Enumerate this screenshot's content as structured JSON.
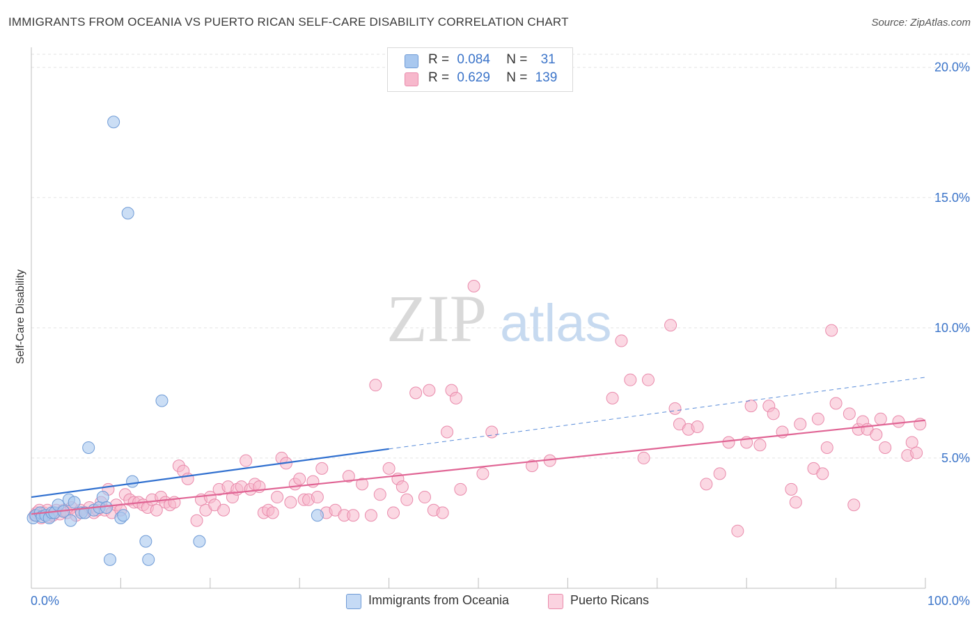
{
  "title": "IMMIGRANTS FROM OCEANIA VS PUERTO RICAN SELF-CARE DISABILITY CORRELATION CHART",
  "source": "Source: ZipAtlas.com",
  "watermark": {
    "zip": "ZIP",
    "atlas": "atlas"
  },
  "legend": {
    "rows": [
      {
        "r_label": "R =",
        "r_value": "0.084",
        "n_label": "N =",
        "n_value": "31",
        "color": "#a9c8ef",
        "stroke": "#6f9bd6"
      },
      {
        "r_label": "R =",
        "r_value": "0.629",
        "n_label": "N =",
        "n_value": "139",
        "color": "#f7b8cc",
        "stroke": "#e98aab"
      }
    ]
  },
  "bottom_legend": [
    {
      "label": "Immigrants from Oceania",
      "color": "#a9c8ef",
      "stroke": "#6f9bd6"
    },
    {
      "label": "Puerto Ricans",
      "color": "#f7b8cc",
      "stroke": "#e98aab"
    }
  ],
  "chart_data": {
    "type": "scatter",
    "title": "IMMIGRANTS FROM OCEANIA VS PUERTO RICAN SELF-CARE DISABILITY CORRELATION CHART",
    "xlabel": "",
    "ylabel": "Self-Care Disability",
    "xlim": [
      0,
      100
    ],
    "ylim": [
      0,
      20.5
    ],
    "x_tick_labels": [
      "0.0%",
      "100.0%"
    ],
    "y_ticks": [
      5,
      10,
      15,
      20
    ],
    "y_tick_labels": [
      "5.0%",
      "10.0%",
      "15.0%",
      "20.0%"
    ],
    "grid": true,
    "legend_position": "top-center",
    "series": [
      {
        "name": "Immigrants from Oceania",
        "color": "#a9c8ef",
        "stroke": "#6f9bd6",
        "trend": {
          "x0": 0,
          "y0": 3.5,
          "x1": 40,
          "y1": 5.35,
          "dash_to_x": 100,
          "dash_to_y": 8.1,
          "color": "#2f6fcf"
        },
        "points": [
          [
            0.2,
            2.7
          ],
          [
            0.5,
            2.8
          ],
          [
            1.0,
            2.9
          ],
          [
            1.2,
            2.75
          ],
          [
            1.6,
            2.8
          ],
          [
            2.0,
            2.7
          ],
          [
            2.3,
            2.9
          ],
          [
            2.6,
            2.9
          ],
          [
            3.0,
            3.2
          ],
          [
            3.6,
            2.95
          ],
          [
            4.2,
            3.4
          ],
          [
            4.8,
            3.3
          ],
          [
            4.4,
            2.6
          ],
          [
            5.6,
            2.9
          ],
          [
            6.0,
            2.9
          ],
          [
            6.4,
            5.4
          ],
          [
            7.0,
            3.0
          ],
          [
            7.6,
            3.1
          ],
          [
            8.0,
            3.5
          ],
          [
            8.4,
            3.1
          ],
          [
            8.8,
            1.1
          ],
          [
            9.2,
            17.9
          ],
          [
            10.0,
            2.7
          ],
          [
            10.3,
            2.8
          ],
          [
            10.8,
            14.4
          ],
          [
            11.3,
            4.1
          ],
          [
            12.8,
            1.8
          ],
          [
            13.1,
            1.1
          ],
          [
            14.6,
            7.2
          ],
          [
            18.8,
            1.8
          ],
          [
            32.0,
            2.8
          ]
        ]
      },
      {
        "name": "Puerto Ricans",
        "color": "#f7b8cc",
        "stroke": "#e98aab",
        "trend": {
          "x0": 0,
          "y0": 2.85,
          "x1": 100,
          "y1": 6.45,
          "color": "#e06494"
        },
        "points": [
          [
            0.4,
            2.8
          ],
          [
            0.6,
            2.9
          ],
          [
            0.9,
            3.0
          ],
          [
            1.1,
            2.7
          ],
          [
            1.4,
            2.9
          ],
          [
            1.8,
            3.0
          ],
          [
            2.0,
            2.75
          ],
          [
            2.4,
            2.8
          ],
          [
            2.8,
            3.0
          ],
          [
            3.2,
            2.85
          ],
          [
            3.6,
            3.0
          ],
          [
            4.0,
            2.9
          ],
          [
            4.5,
            3.1
          ],
          [
            5.0,
            2.8
          ],
          [
            5.5,
            3.0
          ],
          [
            6.0,
            2.9
          ],
          [
            6.5,
            3.1
          ],
          [
            7.0,
            2.9
          ],
          [
            7.4,
            3.0
          ],
          [
            7.8,
            3.3
          ],
          [
            8.2,
            3.0
          ],
          [
            8.6,
            3.8
          ],
          [
            9.0,
            2.9
          ],
          [
            9.5,
            3.2
          ],
          [
            10.0,
            3.0
          ],
          [
            10.5,
            3.6
          ],
          [
            11.0,
            3.4
          ],
          [
            11.5,
            3.3
          ],
          [
            12.0,
            3.3
          ],
          [
            12.5,
            3.2
          ],
          [
            13.0,
            3.1
          ],
          [
            13.5,
            3.4
          ],
          [
            14.0,
            3.0
          ],
          [
            14.5,
            3.5
          ],
          [
            15.0,
            3.3
          ],
          [
            15.5,
            3.2
          ],
          [
            16.0,
            3.3
          ],
          [
            16.5,
            4.7
          ],
          [
            17.0,
            4.5
          ],
          [
            17.5,
            4.2
          ],
          [
            18.5,
            2.6
          ],
          [
            19.0,
            3.4
          ],
          [
            19.5,
            3.0
          ],
          [
            20.0,
            3.5
          ],
          [
            20.5,
            3.2
          ],
          [
            21.0,
            3.8
          ],
          [
            21.5,
            3.0
          ],
          [
            22.0,
            3.9
          ],
          [
            22.5,
            3.5
          ],
          [
            23.0,
            3.8
          ],
          [
            23.5,
            3.9
          ],
          [
            24.0,
            4.9
          ],
          [
            24.5,
            3.8
          ],
          [
            25.0,
            4.0
          ],
          [
            25.5,
            3.9
          ],
          [
            26.0,
            2.9
          ],
          [
            26.5,
            3.0
          ],
          [
            27.0,
            2.9
          ],
          [
            27.5,
            3.5
          ],
          [
            28.0,
            5.0
          ],
          [
            28.5,
            4.8
          ],
          [
            29.0,
            3.3
          ],
          [
            29.5,
            4.0
          ],
          [
            30.0,
            4.2
          ],
          [
            30.5,
            3.4
          ],
          [
            31.0,
            3.4
          ],
          [
            31.5,
            4.1
          ],
          [
            32.0,
            3.5
          ],
          [
            32.5,
            4.6
          ],
          [
            33.0,
            2.9
          ],
          [
            34.0,
            3.0
          ],
          [
            35.0,
            2.8
          ],
          [
            35.5,
            4.3
          ],
          [
            36.0,
            2.8
          ],
          [
            37.0,
            4.0
          ],
          [
            38.0,
            2.8
          ],
          [
            38.5,
            7.8
          ],
          [
            39.0,
            3.6
          ],
          [
            40.0,
            4.6
          ],
          [
            40.5,
            2.9
          ],
          [
            41.0,
            4.2
          ],
          [
            41.5,
            3.9
          ],
          [
            42.0,
            3.4
          ],
          [
            43.0,
            7.5
          ],
          [
            44.0,
            3.5
          ],
          [
            44.5,
            7.6
          ],
          [
            45.0,
            3.0
          ],
          [
            46.0,
            2.9
          ],
          [
            46.5,
            6.0
          ],
          [
            47.0,
            7.6
          ],
          [
            47.5,
            7.3
          ],
          [
            48.0,
            3.8
          ],
          [
            49.5,
            11.6
          ],
          [
            50.5,
            4.4
          ],
          [
            51.5,
            6.0
          ],
          [
            56.0,
            4.7
          ],
          [
            58.0,
            4.9
          ],
          [
            65.0,
            7.3
          ],
          [
            66.0,
            9.5
          ],
          [
            67.0,
            8.0
          ],
          [
            68.5,
            5.0
          ],
          [
            69.0,
            8.0
          ],
          [
            71.5,
            10.1
          ],
          [
            72.0,
            6.9
          ],
          [
            72.5,
            6.3
          ],
          [
            73.5,
            6.1
          ],
          [
            74.5,
            6.2
          ],
          [
            75.5,
            4.0
          ],
          [
            77.0,
            4.4
          ],
          [
            78.0,
            5.6
          ],
          [
            79.0,
            2.2
          ],
          [
            80.0,
            5.6
          ],
          [
            80.5,
            7.0
          ],
          [
            81.5,
            5.5
          ],
          [
            82.5,
            7.0
          ],
          [
            83.0,
            6.7
          ],
          [
            84.0,
            6.0
          ],
          [
            85.0,
            3.8
          ],
          [
            85.5,
            3.3
          ],
          [
            86.0,
            6.3
          ],
          [
            87.5,
            4.6
          ],
          [
            88.0,
            6.5
          ],
          [
            88.5,
            4.4
          ],
          [
            89.0,
            5.4
          ],
          [
            89.5,
            9.9
          ],
          [
            90.0,
            7.1
          ],
          [
            91.5,
            6.7
          ],
          [
            92.0,
            3.2
          ],
          [
            92.5,
            6.1
          ],
          [
            93.0,
            6.4
          ],
          [
            93.5,
            6.1
          ],
          [
            94.5,
            5.9
          ],
          [
            95.0,
            6.5
          ],
          [
            95.5,
            5.4
          ],
          [
            97.0,
            6.4
          ],
          [
            98.0,
            5.1
          ],
          [
            98.5,
            5.6
          ],
          [
            99.0,
            5.2
          ],
          [
            99.4,
            6.3
          ]
        ]
      }
    ]
  }
}
